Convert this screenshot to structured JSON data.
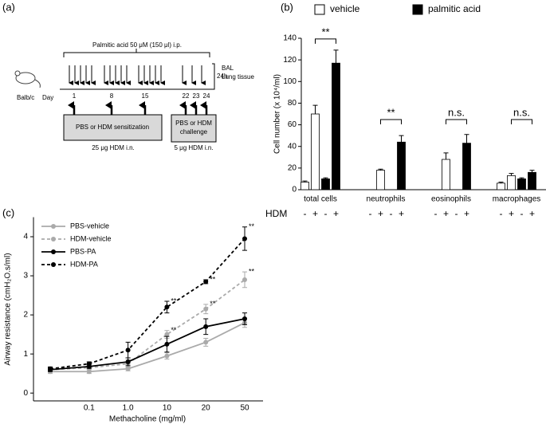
{
  "diagram": {
    "panel_label": "(a)",
    "treatment": "Palmitic acid 50 μM (150 μl) i.p.",
    "strain": "Balb/c",
    "day_label": "Day",
    "days": [
      "1",
      "8",
      "15",
      "22",
      "23",
      "24"
    ],
    "endpoint_time": "24h",
    "endpoints": [
      "BAL",
      "Lung tissue"
    ],
    "sensitization": "PBS or HDM sensitization",
    "challenge": [
      "PBS or HDM",
      "challenge"
    ],
    "sensitization_dose": "25 μg HDM i.n.",
    "challenge_dose": "5 μg HDM i.n."
  },
  "chart_data": [
    {
      "type": "bar",
      "panel_label": "(b)",
      "y_label": "Cell number (x 10⁴/ml)",
      "categories": [
        "total cells",
        "neutrophils",
        "eosinophils",
        "macrophages"
      ],
      "ylim": [
        0,
        140
      ],
      "yticks": [
        0,
        20,
        40,
        60,
        80,
        100,
        120,
        140
      ],
      "group_label": "HDM",
      "groups": [
        "-",
        "+"
      ],
      "series": [
        {
          "name": "vehicle",
          "color": "#ffffff",
          "values": [
            [
              7,
              70
            ],
            [
              0,
              18
            ],
            [
              0,
              28
            ],
            [
              6,
              13
            ]
          ],
          "errors": [
            [
              1,
              8
            ],
            [
              0,
              1
            ],
            [
              0,
              6
            ],
            [
              1,
              2
            ]
          ]
        },
        {
          "name": "palmitic acid",
          "color": "#000000",
          "values": [
            [
              10,
              117
            ],
            [
              0,
              44
            ],
            [
              0,
              43
            ],
            [
              10,
              16
            ]
          ],
          "errors": [
            [
              1,
              12
            ],
            [
              0,
              6
            ],
            [
              0,
              8
            ],
            [
              1,
              2
            ]
          ]
        }
      ],
      "annotations": [
        "**",
        "**",
        "n.s.",
        "n.s."
      ],
      "legend": "top"
    },
    {
      "type": "line",
      "panel_label": "(c)",
      "x_label": "Methacholine (mg/ml)",
      "y_label": "Airway resistance (cmH₂O.s/ml)",
      "categories": [
        null,
        "0.1",
        "1.0",
        "10",
        "20",
        "50"
      ],
      "ylim": [
        -0.2,
        4.5
      ],
      "yticks": [
        0,
        1,
        2,
        3,
        4
      ],
      "legend": "top-left",
      "series": [
        {
          "name": "PBS-vehicle",
          "color": "#aaaaaa",
          "dashed": false,
          "values": [
            0.55,
            0.55,
            0.62,
            0.95,
            1.3,
            1.8
          ],
          "errors": [
            0.05,
            0.05,
            0.05,
            0.08,
            0.1,
            0.12
          ],
          "significance": [
            null,
            null,
            null,
            null,
            null,
            null
          ]
        },
        {
          "name": "HDM-vehicle",
          "color": "#aaaaaa",
          "dashed": true,
          "values": [
            0.6,
            0.65,
            0.75,
            1.5,
            2.15,
            2.9
          ],
          "errors": [
            0.05,
            0.05,
            0.1,
            0.1,
            0.12,
            0.2
          ],
          "significance": [
            null,
            null,
            null,
            "**",
            "**",
            "**"
          ]
        },
        {
          "name": "PBS-PA",
          "color": "#000000",
          "dashed": false,
          "values": [
            0.6,
            0.68,
            0.8,
            1.25,
            1.7,
            1.9
          ],
          "errors": [
            0.05,
            0.05,
            0.1,
            0.2,
            0.2,
            0.15
          ],
          "significance": [
            null,
            null,
            null,
            null,
            null,
            null
          ]
        },
        {
          "name": "HDM-PA",
          "color": "#000000",
          "dashed": true,
          "values": [
            0.62,
            0.75,
            1.1,
            2.2,
            2.85,
            3.95
          ],
          "errors": [
            0.05,
            0.05,
            0.2,
            0.15,
            0.05,
            0.3
          ],
          "significance": [
            null,
            null,
            null,
            "**",
            "**",
            "**"
          ]
        }
      ]
    }
  ]
}
